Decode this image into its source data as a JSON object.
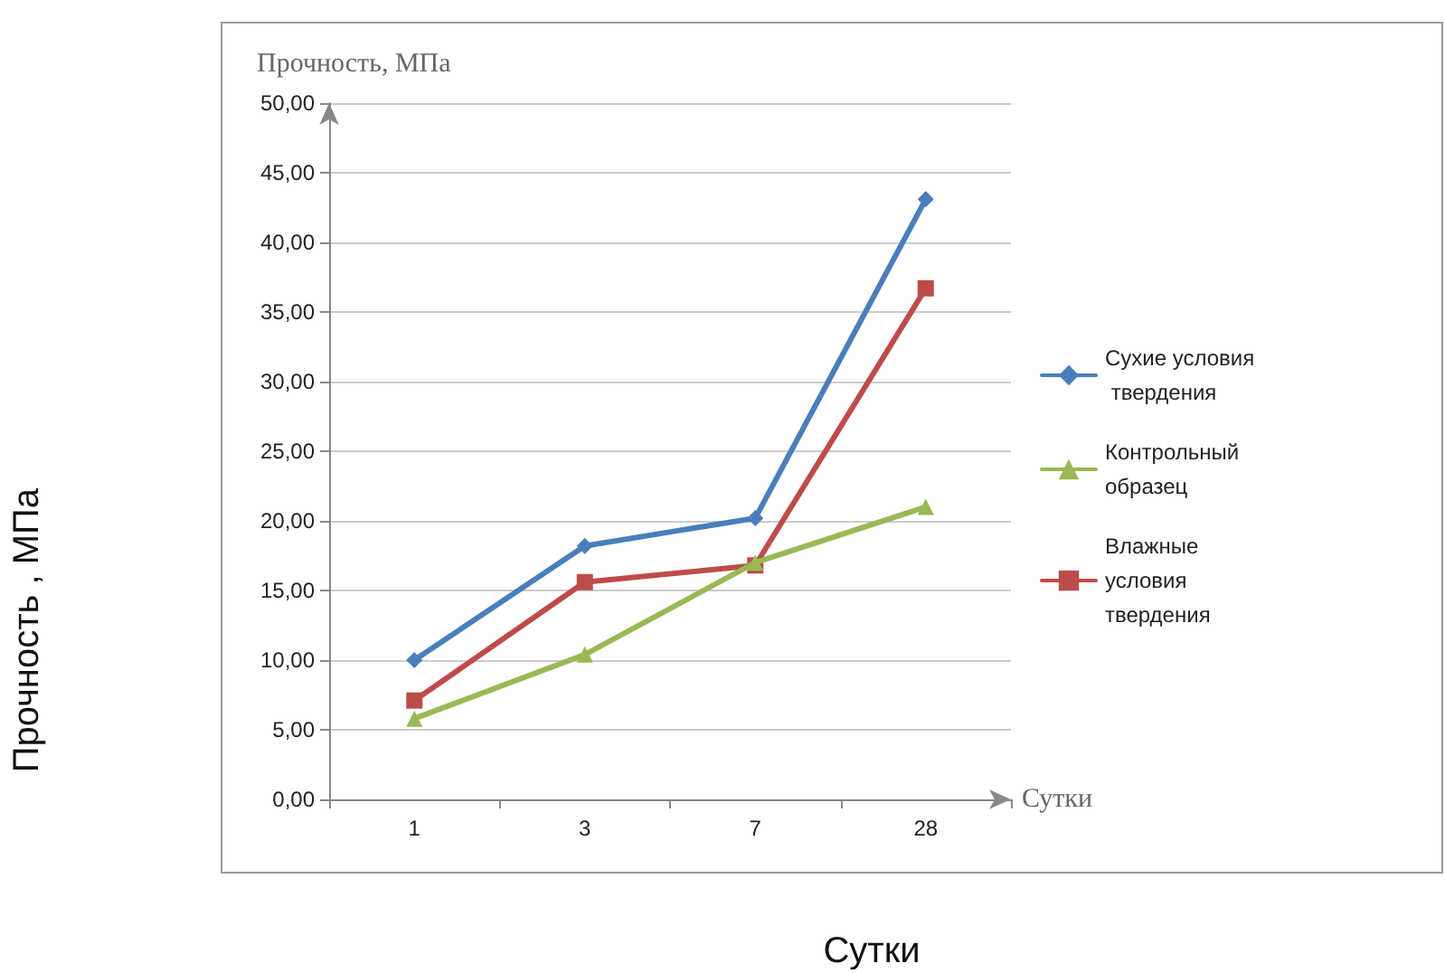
{
  "chart_data": {
    "type": "line",
    "xlabel": "Сутки",
    "ylabel": "Прочность, МПа",
    "annotations": [
      "Прочность , МПа",
      "Сутки"
    ],
    "categories": [
      "1",
      "3",
      "7",
      "28"
    ],
    "series": [
      {
        "name": "Сухие условия твердения",
        "color": "#4a7ebb",
        "marker": "diamond",
        "values": [
          10.0,
          18.2,
          20.2,
          43.1
        ]
      },
      {
        "name": "Контрольный образец",
        "color": "#98b954",
        "marker": "triangle",
        "values": [
          5.8,
          10.4,
          17.0,
          21.0
        ]
      },
      {
        "name": "Влажные условия твердения",
        "color": "#be4b48",
        "marker": "square",
        "values": [
          7.1,
          15.6,
          16.8,
          36.7
        ]
      }
    ],
    "ylim": [
      0,
      50
    ],
    "yticks": [
      {
        "value": 0,
        "label": "0,00"
      },
      {
        "value": 5,
        "label": "5,00"
      },
      {
        "value": 10,
        "label": "10,00"
      },
      {
        "value": 15,
        "label": "15,00"
      },
      {
        "value": 20,
        "label": "20,00"
      },
      {
        "value": 25,
        "label": "25,00"
      },
      {
        "value": 30,
        "label": "30,00"
      },
      {
        "value": 35,
        "label": "35,00"
      },
      {
        "value": 40,
        "label": "40,00"
      },
      {
        "value": 45,
        "label": "45,00"
      },
      {
        "value": 50,
        "label": "50,00"
      }
    ],
    "grid": "y",
    "legend": "right",
    "line_style": "solid"
  }
}
